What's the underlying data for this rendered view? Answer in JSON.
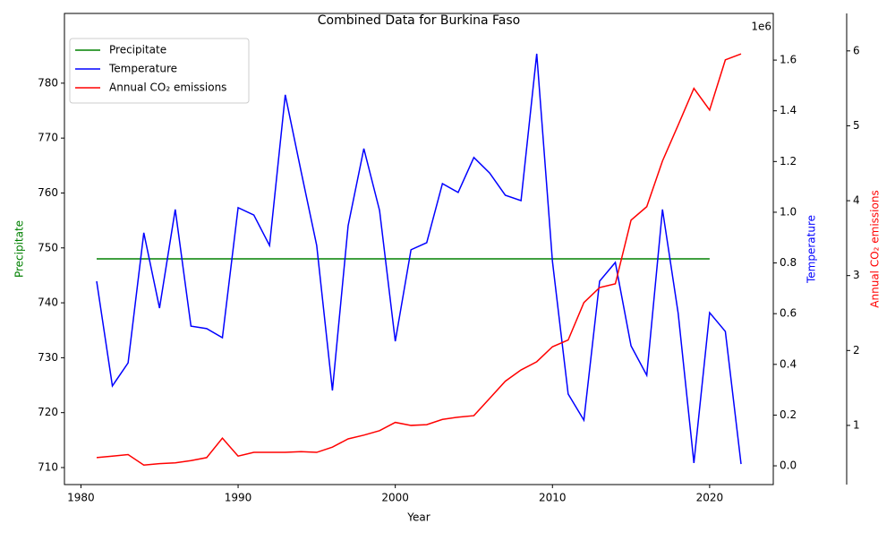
{
  "chart_data": {
    "type": "line",
    "title": "Combined Data for Burkina Faso",
    "xlabel": "Year",
    "ylabel": "Precipitate",
    "y2label": "Temperature",
    "y3label": "Annual CO₂ emissions",
    "y2offset": "1e6",
    "x": [
      1981,
      1982,
      1983,
      1984,
      1985,
      1986,
      1987,
      1988,
      1989,
      1990,
      1991,
      1992,
      1993,
      1994,
      1995,
      1996,
      1997,
      1998,
      1999,
      2000,
      2001,
      2002,
      2003,
      2004,
      2005,
      2006,
      2007,
      2008,
      2009,
      2010,
      2011,
      2012,
      2013,
      2014,
      2015,
      2016,
      2017,
      2018,
      2019,
      2020,
      2021,
      2022
    ],
    "xlim": [
      1978.95,
      2024.05
    ],
    "xticks": [
      1980,
      1990,
      2000,
      2010,
      2020
    ],
    "ylim": [
      706.9,
      792.7
    ],
    "yticks": [
      710,
      720,
      730,
      740,
      750,
      760,
      770,
      780
    ],
    "y2lim": [
      -74000,
      1784000
    ],
    "y2ticks": [
      {
        "value": 0,
        "label": "0.0"
      },
      {
        "value": 200000,
        "label": "0.2"
      },
      {
        "value": 400000,
        "label": "0.4"
      },
      {
        "value": 600000,
        "label": "0.6"
      },
      {
        "value": 800000,
        "label": "0.8"
      },
      {
        "value": 1000000,
        "label": "1.0"
      },
      {
        "value": 1200000,
        "label": "1.2"
      },
      {
        "value": 1400000,
        "label": "1.4"
      },
      {
        "value": 1600000,
        "label": "1.6"
      }
    ],
    "y3lim": [
      0.21,
      6.5
    ],
    "y3ticks": [
      1,
      2,
      3,
      4,
      5,
      6
    ],
    "legend": "upper left",
    "series": [
      {
        "name": "Precipitate",
        "color": "green",
        "axis": "y",
        "values": [
          748,
          748,
          748,
          748,
          748,
          748,
          748,
          748,
          748,
          748,
          748,
          748,
          748,
          748,
          748,
          748,
          748,
          748,
          748,
          748,
          748,
          748,
          748,
          748,
          748,
          748,
          748,
          748,
          748,
          748,
          748,
          748,
          748,
          748,
          748,
          748,
          748,
          748,
          748,
          748,
          null,
          null
        ]
      },
      {
        "name": "Temperature",
        "color": "blue",
        "axis": "y2",
        "values": [
          728000,
          315000,
          406000,
          919000,
          622000,
          1011000,
          551000,
          541000,
          505000,
          1018000,
          989000,
          869000,
          1463000,
          1163000,
          869000,
          297000,
          947000,
          1251000,
          1007000,
          491000,
          852000,
          880000,
          1113000,
          1078000,
          1216000,
          1155000,
          1067000,
          1046000,
          1625000,
          806000,
          283000,
          180000,
          728000,
          802000,
          473000,
          357000,
          1011000,
          601000,
          11000,
          604000,
          530000,
          7000
        ]
      },
      {
        "name": "Annual CO₂ emissions",
        "color": "red",
        "axis": "y3",
        "values": [
          0.57,
          0.59,
          0.61,
          0.47,
          0.49,
          0.5,
          0.53,
          0.57,
          0.83,
          0.59,
          0.64,
          0.64,
          0.64,
          0.65,
          0.64,
          0.71,
          0.82,
          0.87,
          0.93,
          1.04,
          1.0,
          1.01,
          1.08,
          1.11,
          1.13,
          1.36,
          1.59,
          1.74,
          1.85,
          2.05,
          2.14,
          2.64,
          2.84,
          2.89,
          3.74,
          3.92,
          4.53,
          5.01,
          5.5,
          5.21,
          5.88,
          5.96
        ]
      }
    ]
  }
}
